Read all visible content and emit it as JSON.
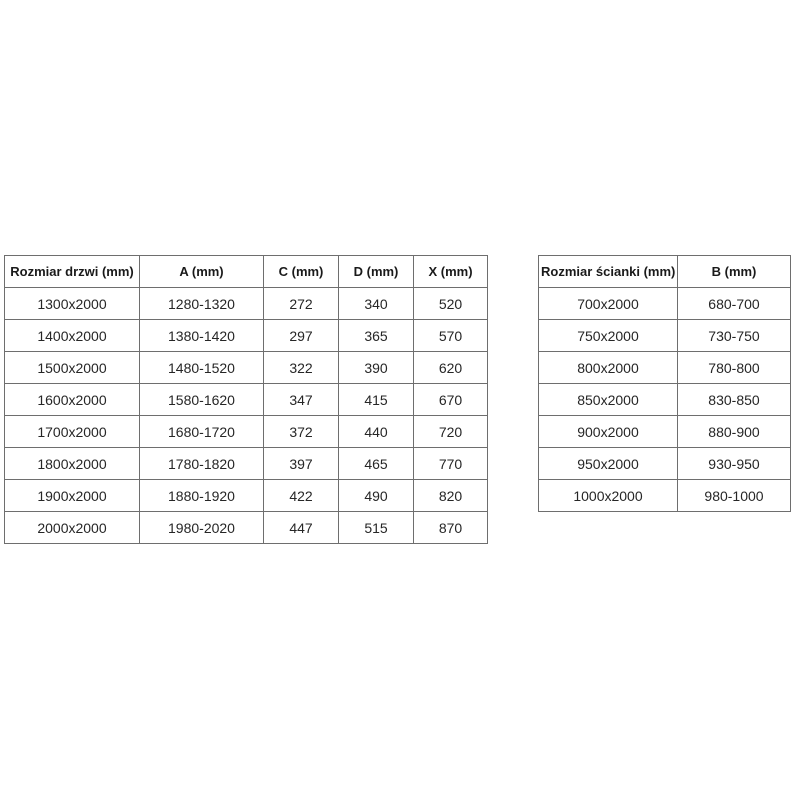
{
  "page": {
    "background_color": "#ffffff",
    "border_color": "#6e6e6e",
    "text_color": "#262626"
  },
  "tables": [
    {
      "id": "door-sizes",
      "headers": [
        "Rozmiar drzwi (mm)",
        "A (mm)",
        "C (mm)",
        "D (mm)",
        "X (mm)"
      ],
      "rows": [
        [
          "1300x2000",
          "1280-1320",
          "272",
          "340",
          "520"
        ],
        [
          "1400x2000",
          "1380-1420",
          "297",
          "365",
          "570"
        ],
        [
          "1500x2000",
          "1480-1520",
          "322",
          "390",
          "620"
        ],
        [
          "1600x2000",
          "1580-1620",
          "347",
          "415",
          "670"
        ],
        [
          "1700x2000",
          "1680-1720",
          "372",
          "440",
          "720"
        ],
        [
          "1800x2000",
          "1780-1820",
          "397",
          "465",
          "770"
        ],
        [
          "1900x2000",
          "1880-1920",
          "422",
          "490",
          "820"
        ],
        [
          "2000x2000",
          "1980-2020",
          "447",
          "515",
          "870"
        ]
      ]
    },
    {
      "id": "wall-sizes",
      "headers": [
        "Rozmiar ścianki (mm)",
        "B (mm)"
      ],
      "rows": [
        [
          "700x2000",
          "680-700"
        ],
        [
          "750x2000",
          "730-750"
        ],
        [
          "800x2000",
          "780-800"
        ],
        [
          "850x2000",
          "830-850"
        ],
        [
          "900x2000",
          "880-900"
        ],
        [
          "950x2000",
          "930-950"
        ],
        [
          "1000x2000",
          "980-1000"
        ]
      ]
    }
  ]
}
